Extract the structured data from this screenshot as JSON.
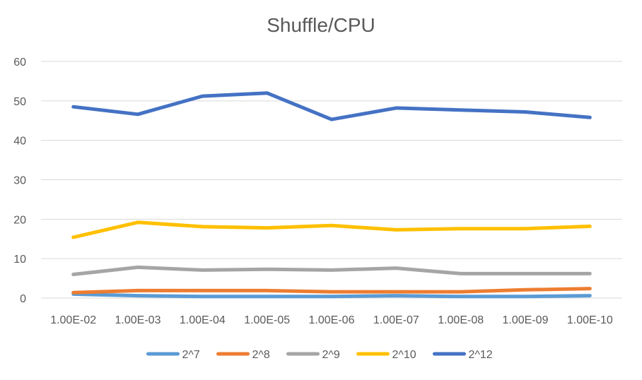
{
  "chart_data": {
    "type": "line",
    "title": "Shuffle/CPU",
    "xlabel": "",
    "ylabel": "",
    "categories": [
      "1.00E-02",
      "1.00E-03",
      "1.00E-04",
      "1.00E-05",
      "1.00E-06",
      "1.00E-07",
      "1.00E-08",
      "1.00E-09",
      "1.00E-10"
    ],
    "ylim": [
      0,
      60
    ],
    "yticks": [
      "0",
      "10",
      "20",
      "30",
      "40",
      "50",
      "60"
    ],
    "grid": true,
    "legend": "bottom",
    "series": [
      {
        "name": "2^7",
        "color": "#5b9bd5",
        "values": [
          1.0,
          0.6,
          0.4,
          0.4,
          0.4,
          0.6,
          0.4,
          0.4,
          0.6
        ]
      },
      {
        "name": "2^8",
        "color": "#ed7d31",
        "values": [
          1.4,
          1.9,
          1.9,
          1.9,
          1.6,
          1.6,
          1.6,
          2.1,
          2.4
        ]
      },
      {
        "name": "2^9",
        "color": "#a5a5a5",
        "values": [
          6.0,
          7.8,
          7.1,
          7.3,
          7.1,
          7.6,
          6.2,
          6.2,
          6.2
        ]
      },
      {
        "name": "2^10",
        "color": "#ffc000",
        "values": [
          15.4,
          19.2,
          18.1,
          17.8,
          18.4,
          17.3,
          17.6,
          17.6,
          18.2
        ]
      },
      {
        "name": "2^12",
        "color": "#4472c4",
        "values": [
          48.5,
          46.6,
          51.2,
          52.0,
          45.3,
          48.2,
          47.7,
          47.2,
          45.8
        ]
      }
    ]
  }
}
